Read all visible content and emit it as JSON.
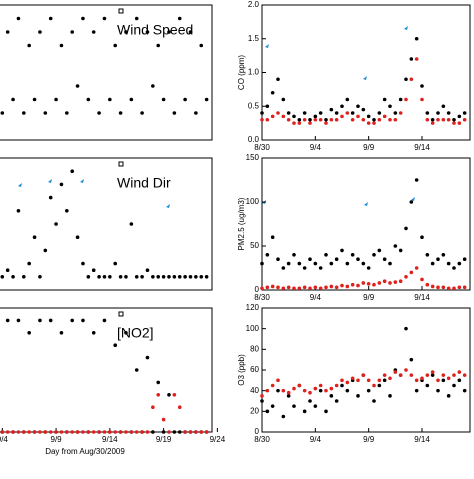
{
  "chart_data": [
    {
      "type": "scatter",
      "annotation": "Wind Speed",
      "x": [
        5,
        5.5,
        6,
        6.5,
        7,
        7.5,
        8,
        8.5,
        9,
        9.5,
        10,
        10.5,
        11,
        11.5,
        12,
        12.5,
        13,
        13.5,
        14,
        14.5,
        15,
        15.5,
        16,
        16.5,
        17,
        17.5,
        18,
        18.5,
        19,
        19.5,
        20,
        20.5,
        21,
        21.5,
        22,
        22.5,
        23,
        23.5,
        24
      ],
      "series": [
        {
          "color": "#000000",
          "values": [
            2,
            8,
            3,
            9,
            2,
            7,
            3,
            8,
            2,
            9,
            3,
            7,
            2,
            8,
            4,
            9,
            3,
            8,
            2,
            9,
            3,
            7,
            2,
            8,
            3,
            9,
            2,
            8,
            4,
            7,
            3,
            8,
            2,
            9,
            3,
            8,
            2,
            7,
            3
          ]
        }
      ],
      "xlim": [
        4.6,
        24.5
      ],
      "ylim": [
        0,
        10
      ]
    },
    {
      "type": "scatter",
      "annotation": "Wind Dir",
      "x": [
        5,
        5.5,
        6,
        6.5,
        7,
        7.5,
        8,
        8.5,
        9,
        9.5,
        10,
        10.5,
        11,
        11.5,
        12,
        12.5,
        13,
        13.5,
        14,
        14.5,
        15,
        15.5,
        16,
        16.5,
        17,
        17.5,
        18,
        18.5,
        19,
        19.5,
        20,
        20.5,
        21,
        21.5,
        22,
        22.5,
        23,
        23.5,
        24
      ],
      "series": [
        {
          "color": "#000000",
          "values": [
            1,
            1.5,
            1,
            6,
            1,
            2,
            4,
            1,
            3,
            7,
            5,
            8,
            6,
            9,
            4,
            2,
            1,
            1.5,
            1,
            1,
            1,
            2,
            1,
            1,
            5,
            1,
            1,
            1.5,
            1,
            1,
            1,
            1,
            1,
            1,
            1,
            1,
            1,
            1,
            1
          ]
        }
      ],
      "xlim": [
        4.6,
        24.5
      ],
      "ylim": [
        0,
        10
      ]
    },
    {
      "type": "scatter",
      "annotation": "[NO2]",
      "xlabel": "Day from Aug/30/2009",
      "x": [
        5,
        5.5,
        6,
        6.5,
        7,
        7.5,
        8,
        8.5,
        9,
        9.5,
        10,
        10.5,
        11,
        11.5,
        12,
        12.5,
        13,
        13.5,
        14,
        14.5,
        15,
        15.5,
        16,
        16.5,
        17,
        17.5,
        18,
        18.5,
        19,
        19.5,
        20,
        20.5,
        21,
        21.5,
        22,
        22.5,
        23,
        23.5,
        24
      ],
      "series": [
        {
          "color": "#000000",
          "values": [
            0,
            9,
            0,
            9,
            0,
            8,
            0,
            9,
            0,
            9,
            0,
            8,
            0,
            9,
            0,
            9,
            0,
            8,
            0,
            9,
            0,
            7,
            0,
            8,
            0,
            5,
            0,
            6,
            0,
            4,
            0,
            3,
            0,
            0,
            0,
            0,
            0,
            0,
            0
          ]
        },
        {
          "color": "#e0201c",
          "values": [
            0,
            0,
            0,
            0,
            0,
            0,
            0,
            0,
            0,
            0,
            0,
            0,
            0,
            0,
            0,
            0,
            0,
            0,
            0,
            0,
            0,
            0,
            0,
            0,
            0,
            0,
            0,
            0,
            2,
            3,
            1,
            0,
            3,
            2,
            0,
            0,
            0,
            0,
            0
          ]
        }
      ],
      "xlim": [
        4.6,
        24.5
      ],
      "ylim": [
        0,
        10
      ],
      "xticks": [
        {
          "value": 5,
          "label": "9/4"
        },
        {
          "value": 10,
          "label": "9/9"
        },
        {
          "value": 15,
          "label": "9/14"
        },
        {
          "value": 20,
          "label": "9/19"
        },
        {
          "value": 25,
          "label": "9/24"
        }
      ]
    },
    {
      "type": "scatter",
      "ylabel": "CO (ppm)",
      "x": [
        0,
        0.5,
        1,
        1.5,
        2,
        2.5,
        3,
        3.5,
        4,
        4.5,
        5,
        5.5,
        6,
        6.5,
        7,
        7.5,
        8,
        8.5,
        9,
        9.5,
        10,
        10.5,
        11,
        11.5,
        12,
        12.5,
        13,
        13.5,
        14,
        14.5,
        15,
        15.5,
        16,
        16.5,
        17,
        17.5,
        18,
        18.5,
        19
      ],
      "series": [
        {
          "color": "#000000",
          "values": [
            0.4,
            0.5,
            0.7,
            0.9,
            0.6,
            0.4,
            0.35,
            0.3,
            0.4,
            0.3,
            0.35,
            0.4,
            0.3,
            0.45,
            0.4,
            0.5,
            0.6,
            0.4,
            0.5,
            0.45,
            0.35,
            0.3,
            0.4,
            0.6,
            0.5,
            0.4,
            0.6,
            0.9,
            1.2,
            1.5,
            0.8,
            0.4,
            0.3,
            0.4,
            0.5,
            0.4,
            0.3,
            0.35,
            0.4
          ]
        },
        {
          "color": "#e0201c",
          "values": [
            0.3,
            0.3,
            0.35,
            0.4,
            0.35,
            0.3,
            0.25,
            0.25,
            0.3,
            0.25,
            0.3,
            0.3,
            0.25,
            0.3,
            0.3,
            0.35,
            0.4,
            0.3,
            0.35,
            0.3,
            0.25,
            0.25,
            0.3,
            0.35,
            0.3,
            0.3,
            0.4,
            0.6,
            0.9,
            1.2,
            0.6,
            0.3,
            0.25,
            0.3,
            0.3,
            0.3,
            0.25,
            0.25,
            0.3
          ]
        }
      ],
      "xlim": [
        0,
        19.5
      ],
      "ylim": [
        0,
        2
      ],
      "xticks": [
        {
          "value": 0,
          "label": "8/30"
        },
        {
          "value": 5,
          "label": "9/4"
        },
        {
          "value": 10,
          "label": "9/9"
        },
        {
          "value": 15,
          "label": "9/14"
        }
      ],
      "yticks": [
        {
          "value": 0,
          "label": "0.0"
        },
        {
          "value": 0.5,
          "label": "0.5"
        },
        {
          "value": 1,
          "label": "1.0"
        },
        {
          "value": 1.5,
          "label": "1.5"
        },
        {
          "value": 2,
          "label": "2.0"
        }
      ]
    },
    {
      "type": "scatter",
      "ylabel": "PM2.5 (ug/m3)",
      "x": [
        0,
        0.5,
        1,
        1.5,
        2,
        2.5,
        3,
        3.5,
        4,
        4.5,
        5,
        5.5,
        6,
        6.5,
        7,
        7.5,
        8,
        8.5,
        9,
        9.5,
        10,
        10.5,
        11,
        11.5,
        12,
        12.5,
        13,
        13.5,
        14,
        14.5,
        15,
        15.5,
        16,
        16.5,
        17,
        17.5,
        18,
        18.5,
        19
      ],
      "series": [
        {
          "color": "#000000",
          "values": [
            30,
            40,
            60,
            35,
            25,
            30,
            40,
            30,
            25,
            35,
            30,
            25,
            40,
            30,
            35,
            45,
            30,
            40,
            35,
            30,
            25,
            40,
            45,
            35,
            30,
            50,
            45,
            70,
            100,
            125,
            60,
            40,
            30,
            35,
            40,
            30,
            25,
            30,
            35
          ]
        },
        {
          "color": "#e0201c",
          "values": [
            2,
            3,
            4,
            3,
            2,
            3,
            2,
            2,
            3,
            2,
            3,
            2,
            3,
            4,
            3,
            5,
            4,
            6,
            5,
            8,
            7,
            6,
            8,
            10,
            8,
            9,
            10,
            15,
            20,
            25,
            12,
            6,
            4,
            3,
            3,
            2,
            2,
            3,
            3
          ]
        }
      ],
      "xlim": [
        0,
        19.5
      ],
      "ylim": [
        0,
        150
      ],
      "xticks": [
        {
          "value": 0,
          "label": "8/30"
        },
        {
          "value": 5,
          "label": "9/4"
        },
        {
          "value": 10,
          "label": "9/9"
        },
        {
          "value": 15,
          "label": "9/14"
        }
      ],
      "yticks": [
        0,
        50,
        100,
        150
      ]
    },
    {
      "type": "scatter",
      "ylabel": "O3 (ppb)",
      "x": [
        0,
        0.5,
        1,
        1.5,
        2,
        2.5,
        3,
        3.5,
        4,
        4.5,
        5,
        5.5,
        6,
        6.5,
        7,
        7.5,
        8,
        8.5,
        9,
        9.5,
        10,
        10.5,
        11,
        11.5,
        12,
        12.5,
        13,
        13.5,
        14,
        14.5,
        15,
        15.5,
        16,
        16.5,
        17,
        17.5,
        18,
        18.5,
        19
      ],
      "series": [
        {
          "color": "#000000",
          "values": [
            30,
            20,
            25,
            40,
            15,
            35,
            25,
            45,
            20,
            30,
            25,
            40,
            20,
            35,
            30,
            45,
            40,
            50,
            35,
            55,
            40,
            30,
            45,
            50,
            35,
            60,
            55,
            100,
            70,
            40,
            50,
            45,
            55,
            40,
            50,
            35,
            45,
            50,
            40
          ]
        },
        {
          "color": "#e0201c",
          "values": [
            35,
            40,
            45,
            50,
            40,
            38,
            42,
            45,
            40,
            38,
            42,
            45,
            40,
            42,
            45,
            50,
            48,
            52,
            50,
            55,
            50,
            45,
            50,
            55,
            52,
            58,
            55,
            60,
            55,
            50,
            52,
            55,
            58,
            50,
            55,
            52,
            55,
            58,
            55
          ]
        }
      ],
      "xlim": [
        0,
        19.5
      ],
      "ylim": [
        0,
        120
      ],
      "xticks": [
        {
          "value": 0,
          "label": "8/30"
        },
        {
          "value": 5,
          "label": "9/4"
        },
        {
          "value": 10,
          "label": "9/9"
        },
        {
          "value": 15,
          "label": "9/14"
        }
      ],
      "yticks": [
        0,
        20,
        40,
        60,
        80,
        100,
        120
      ]
    }
  ]
}
